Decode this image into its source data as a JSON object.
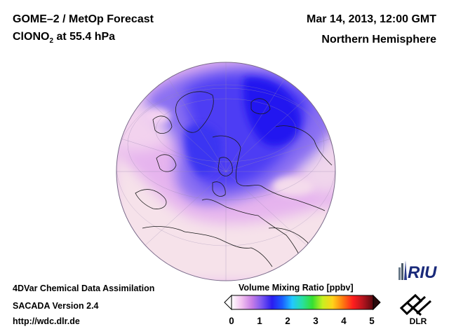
{
  "header": {
    "title": "GOME–2 / MetOp Forecast",
    "species": "ClONO",
    "species_sub": "2",
    "level": " at 55.4 hPa",
    "date": "Mar 14, 2013, 12:00 GMT",
    "region": "Northern Hemisphere"
  },
  "footer": {
    "line1": "4DVar Chemical Data Assimilation",
    "line2": "SACADA Version 2.4",
    "line3": "http://wdc.dlr.de"
  },
  "colorbar": {
    "title": "Volume Mixing Ratio [ppbv]",
    "ticks": [
      "0",
      "1",
      "2",
      "3",
      "4",
      "5"
    ],
    "min": 0,
    "max": 5,
    "colors": [
      "#ffffff",
      "#f2c2f0",
      "#c87ee6",
      "#7a56f0",
      "#2a1cf0",
      "#1a5cff",
      "#22c8ff",
      "#28e0a0",
      "#36e030",
      "#c8f020",
      "#ffd21a",
      "#ff7a10",
      "#ff1e1e",
      "#b4141e",
      "#5a0a10"
    ]
  },
  "logos": {
    "riu": "RIU",
    "dlr": "DLR"
  },
  "map": {
    "projection": "orthographic",
    "colors": {
      "low": "#f8e8ec",
      "mid": "#d9a4f0",
      "high": "#2e28f4"
    }
  }
}
